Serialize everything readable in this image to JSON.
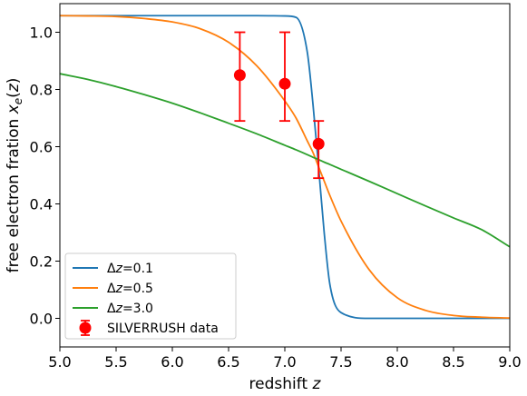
{
  "chart_data": {
    "type": "line",
    "title": "",
    "xlabel": {
      "prefix": "redshift ",
      "var": "z"
    },
    "ylabel": {
      "prefix": "free electron fration ",
      "var": "x",
      "sub": "e",
      "suffix": "(z)"
    },
    "xlim": [
      5.0,
      9.0
    ],
    "ylim": [
      -0.1,
      1.1
    ],
    "xticks": [
      "5.0",
      "5.5",
      "6.0",
      "6.5",
      "7.0",
      "7.5",
      "8.0",
      "8.5",
      "9.0"
    ],
    "yticks": [
      "0.0",
      "0.2",
      "0.4",
      "0.6",
      "0.8",
      "1.0"
    ],
    "grid": false,
    "legend_position": "lower-left",
    "x": [
      5.0,
      5.25,
      5.5,
      5.75,
      6.0,
      6.25,
      6.5,
      6.75,
      7.0,
      7.1,
      7.2,
      7.25,
      7.3,
      7.35,
      7.4,
      7.5,
      7.75,
      8.0,
      8.25,
      8.5,
      8.75,
      9.0
    ],
    "series": [
      {
        "name": "Δz=0.1",
        "name_parts": {
          "delta": "Δ",
          "var": "z",
          "rest": "=0.1"
        },
        "color": "#1f77b4",
        "values": [
          1.058,
          1.058,
          1.058,
          1.058,
          1.058,
          1.058,
          1.058,
          1.058,
          1.057,
          1.052,
          0.93,
          0.75,
          0.53,
          0.3,
          0.12,
          0.02,
          0.0,
          0.0,
          0.0,
          0.0,
          0.0,
          0.0
        ]
      },
      {
        "name": "Δz=0.5",
        "name_parts": {
          "delta": "Δ",
          "var": "z",
          "rest": "=0.5"
        },
        "color": "#ff7f0e",
        "values": [
          1.058,
          1.057,
          1.055,
          1.048,
          1.036,
          1.012,
          0.965,
          0.883,
          0.76,
          0.7,
          0.62,
          0.58,
          0.53,
          0.48,
          0.43,
          0.34,
          0.17,
          0.072,
          0.028,
          0.01,
          0.004,
          0.001
        ]
      },
      {
        "name": "Δz=3.0",
        "name_parts": {
          "delta": "Δ",
          "var": "z",
          "rest": "=3.0"
        },
        "color": "#2ca02c",
        "values": [
          0.855,
          0.835,
          0.81,
          0.782,
          0.752,
          0.718,
          0.682,
          0.645,
          0.605,
          0.589,
          0.572,
          0.563,
          0.555,
          0.546,
          0.538,
          0.521,
          0.479,
          0.436,
          0.393,
          0.351,
          0.31,
          0.25
        ]
      }
    ],
    "errorbar_series": {
      "name": "SILVERRUSH data",
      "color": "#ff0000",
      "points": [
        {
          "x": 6.6,
          "y": 0.85,
          "ylow": 0.69,
          "yhigh": 1.0
        },
        {
          "x": 7.0,
          "y": 0.82,
          "ylow": 0.69,
          "yhigh": 1.0
        },
        {
          "x": 7.3,
          "y": 0.61,
          "ylow": 0.49,
          "yhigh": 0.69
        }
      ]
    }
  }
}
